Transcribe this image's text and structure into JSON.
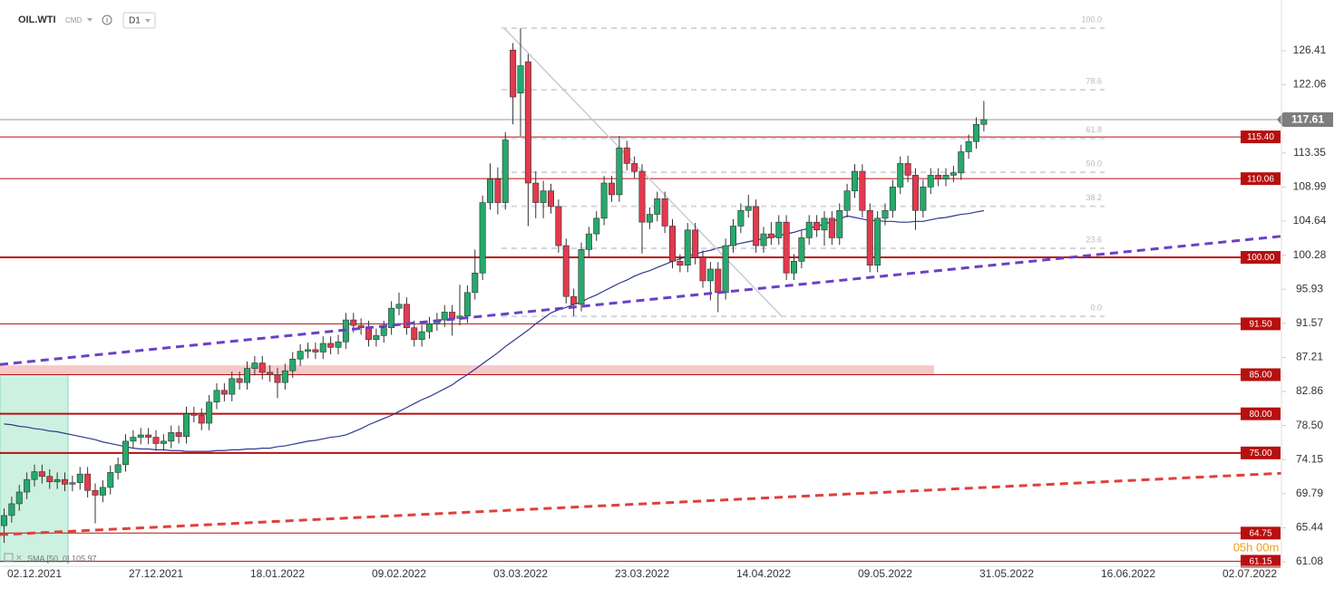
{
  "header": {
    "symbol": "OIL.WTI",
    "market": "CMD",
    "interval": "D1",
    "countdown": "05h 00m"
  },
  "chart_data": {
    "type": "candlestick",
    "ylim": [
      60.5,
      132.9
    ],
    "yticks": [
      126.41,
      122.06,
      113.35,
      108.99,
      104.64,
      100.28,
      95.93,
      91.57,
      87.21,
      82.86,
      {
        "value": 78.5,
        "label": "78.50"
      },
      74.15,
      69.79,
      65.44,
      61.08
    ],
    "categories": [
      null,
      null,
      null,
      null,
      "02.12.2021",
      null,
      null,
      null,
      null,
      null,
      null,
      null,
      null,
      null,
      null,
      null,
      null,
      null,
      null,
      null,
      "27.12.2021",
      null,
      null,
      null,
      null,
      null,
      null,
      null,
      null,
      null,
      null,
      null,
      null,
      null,
      null,
      null,
      "18.01.2022",
      null,
      null,
      null,
      null,
      null,
      null,
      null,
      null,
      null,
      null,
      null,
      null,
      null,
      null,
      null,
      "09.02.2022",
      null,
      null,
      null,
      null,
      null,
      null,
      null,
      null,
      null,
      null,
      null,
      null,
      null,
      null,
      null,
      "03.03.2022",
      null,
      null,
      null,
      null,
      null,
      null,
      null,
      null,
      null,
      null,
      null,
      null,
      null,
      null,
      null,
      "23.03.2022",
      null,
      null,
      null,
      null,
      null,
      null,
      null,
      null,
      null,
      null,
      null,
      null,
      null,
      null,
      null,
      "14.04.2022",
      null,
      null,
      null,
      null,
      null,
      null,
      null,
      null,
      null,
      null,
      null,
      null,
      null,
      null,
      null,
      "09.05.2022",
      null,
      null,
      null,
      null,
      null,
      null,
      null,
      null,
      null,
      null,
      null,
      null,
      null,
      null,
      null,
      "31.05.2022",
      null,
      null,
      null,
      null,
      null,
      null,
      null,
      null,
      null,
      null,
      null,
      null,
      null,
      null,
      null,
      "16.06.2022",
      null,
      null,
      null,
      null,
      null,
      null,
      null,
      null,
      null,
      null,
      null,
      null,
      null,
      null,
      null,
      "02.07.2022",
      null,
      null
    ],
    "up_color": "#26a96c",
    "down_color": "#e23a4e",
    "open": [
      65.7,
      67.0,
      68.5,
      70.0,
      71.6,
      72.6,
      72.0,
      71.3,
      71.6,
      71.0,
      71.2,
      72.3,
      70.2,
      69.6,
      70.6,
      72.5,
      73.5,
      76.5,
      77.0,
      77.3,
      77.0,
      76.2,
      76.5,
      77.6,
      77.1,
      80.0,
      79.8,
      78.8,
      81.5,
      83.0,
      82.5,
      84.5,
      84.0,
      85.8,
      86.5,
      85.3,
      85.0,
      84.0,
      85.5,
      87.0,
      88.0,
      88.2,
      87.9,
      89.0,
      88.5,
      89.2,
      92.0,
      91.3,
      91.0,
      89.5,
      90.0,
      91.0,
      93.5,
      94.0,
      91.0,
      89.5,
      90.5,
      91.5,
      92.0,
      93.0,
      92.2,
      92.5,
      95.5,
      98.0,
      107.0,
      110.0,
      107.0,
      126.5,
      121.0,
      125.0,
      109.5,
      107.0,
      108.5,
      106.5,
      101.5,
      95.0,
      94.0,
      101.0,
      103.0,
      105.0,
      109.5,
      108.0,
      114.0,
      112.0,
      111.0,
      104.5,
      105.5,
      107.5,
      104.0,
      99.5,
      99.0,
      103.5,
      100.0,
      97.0,
      98.5,
      95.5,
      101.5,
      104.0,
      106.0,
      106.5,
      101.5,
      103.0,
      102.5,
      104.5,
      98.0,
      99.5,
      102.5,
      104.5,
      103.5,
      105.0,
      102.5,
      106.0,
      108.5,
      111.0,
      106.0,
      99.0,
      105.0,
      106.0,
      109.0,
      112.0,
      110.5,
      106.0,
      109.0,
      110.5,
      110.0,
      110.5,
      110.8,
      113.5,
      114.8,
      117.0,
      null,
      null,
      null,
      null,
      null,
      null,
      null,
      null,
      null,
      null,
      null,
      null,
      null,
      null,
      null,
      null,
      null,
      null,
      null,
      null,
      null,
      null,
      null,
      null,
      null,
      null,
      null,
      null,
      null,
      null,
      null,
      null,
      null,
      null,
      null,
      null,
      null
    ],
    "high": [
      67.9,
      69.4,
      70.9,
      72.5,
      73.5,
      73.5,
      72.9,
      72.5,
      72.5,
      72.1,
      73.2,
      73.2,
      71.1,
      71.5,
      73.4,
      74.4,
      77.4,
      77.9,
      78.2,
      78.2,
      77.9,
      77.4,
      78.5,
      78.5,
      80.9,
      80.9,
      80.7,
      82.4,
      83.9,
      83.9,
      85.4,
      85.4,
      86.7,
      87.4,
      87.4,
      86.2,
      85.9,
      86.4,
      87.9,
      88.9,
      89.1,
      89.1,
      89.9,
      89.9,
      90.1,
      92.9,
      92.9,
      92.2,
      91.9,
      90.9,
      91.9,
      94.4,
      95.5,
      94.9,
      91.9,
      91.4,
      92.4,
      92.9,
      93.9,
      93.9,
      96.5,
      96.4,
      101.0,
      107.9,
      112.0,
      111.5,
      116.0,
      127.4,
      129.3,
      126.0,
      111.0,
      109.8,
      109.4,
      107.4,
      102.4,
      96.0,
      101.9,
      103.9,
      105.9,
      110.4,
      110.4,
      115.5,
      114.9,
      112.9,
      111.9,
      106.4,
      108.4,
      108.4,
      104.9,
      100.4,
      104.4,
      104.4,
      100.9,
      99.4,
      99.4,
      102.4,
      104.9,
      106.9,
      108.0,
      107.4,
      103.9,
      104.5,
      105.4,
      105.4,
      100.4,
      103.4,
      105.4,
      105.4,
      105.9,
      105.9,
      106.9,
      109.4,
      111.9,
      111.9,
      106.9,
      105.9,
      106.9,
      109.9,
      112.9,
      113.0,
      111.4,
      109.9,
      111.4,
      111.4,
      111.4,
      111.7,
      114.4,
      115.7,
      117.9,
      120.0,
      null,
      null,
      null,
      null,
      null,
      null,
      null,
      null,
      null,
      null,
      null,
      null,
      null,
      null,
      null,
      null,
      null,
      null,
      null,
      null,
      null,
      null,
      null,
      null,
      null,
      null,
      null,
      null,
      null,
      null,
      null,
      null,
      null,
      null,
      null,
      null,
      null
    ],
    "low": [
      63.5,
      66.1,
      67.6,
      69.1,
      70.7,
      71.1,
      70.4,
      70.4,
      70.1,
      70.1,
      70.3,
      69.3,
      66.0,
      68.7,
      69.7,
      71.6,
      72.6,
      75.6,
      76.1,
      76.1,
      75.3,
      75.3,
      75.6,
      76.2,
      76.2,
      78.9,
      77.9,
      77.9,
      80.6,
      81.6,
      81.6,
      83.1,
      83.1,
      84.9,
      84.4,
      84.1,
      82.0,
      83.1,
      84.6,
      86.1,
      87.1,
      87.0,
      87.0,
      87.6,
      87.6,
      88.3,
      90.4,
      90.1,
      88.6,
      88.6,
      89.1,
      90.1,
      92.6,
      90.1,
      88.6,
      88.6,
      89.6,
      90.6,
      91.1,
      90.0,
      91.3,
      91.6,
      94.6,
      97.1,
      106.1,
      105.5,
      106.1,
      117.0,
      115.5,
      104.0,
      105.0,
      105.0,
      105.6,
      100.6,
      94.1,
      92.5,
      93.1,
      100.1,
      102.1,
      104.1,
      107.1,
      107.1,
      111.1,
      110.1,
      100.5,
      103.6,
      104.6,
      103.1,
      98.6,
      98.1,
      98.1,
      99.1,
      96.1,
      94.5,
      93.0,
      94.6,
      100.6,
      103.1,
      105.1,
      100.6,
      100.6,
      101.6,
      101.6,
      97.1,
      97.1,
      98.6,
      101.6,
      102.6,
      101.5,
      101.6,
      101.6,
      105.1,
      107.6,
      105.1,
      98.1,
      98.1,
      104.1,
      105.1,
      108.1,
      109.6,
      103.5,
      105.1,
      108.1,
      109.1,
      109.1,
      109.6,
      109.9,
      112.6,
      113.9,
      116.1,
      null,
      null,
      null,
      null,
      null,
      null,
      null,
      null,
      null,
      null,
      null,
      null,
      null,
      null,
      null,
      null,
      null,
      null,
      null,
      null,
      null,
      null,
      null,
      null,
      null,
      null,
      null,
      null,
      null,
      null,
      null,
      null,
      null,
      null,
      null,
      null,
      null
    ],
    "close": [
      67.0,
      68.5,
      70.0,
      71.6,
      72.6,
      72.0,
      71.3,
      71.6,
      71.0,
      71.2,
      72.3,
      70.2,
      69.6,
      70.6,
      72.5,
      73.5,
      76.5,
      77.0,
      77.3,
      77.0,
      76.2,
      76.5,
      77.6,
      77.1,
      80.0,
      79.8,
      78.8,
      81.5,
      83.0,
      82.5,
      84.5,
      84.0,
      85.8,
      86.5,
      85.3,
      85.0,
      84.0,
      85.5,
      87.0,
      88.0,
      88.2,
      87.9,
      89.0,
      88.5,
      89.2,
      92.0,
      91.3,
      91.0,
      89.5,
      90.0,
      91.0,
      93.5,
      94.0,
      91.0,
      89.5,
      90.5,
      91.5,
      92.0,
      93.0,
      92.2,
      92.5,
      95.5,
      98.0,
      107.0,
      110.0,
      107.0,
      115.0,
      120.5,
      124.5,
      109.5,
      107.0,
      108.5,
      106.5,
      101.5,
      95.0,
      94.0,
      101.0,
      103.0,
      105.0,
      109.5,
      108.0,
      114.0,
      112.0,
      111.0,
      104.5,
      105.5,
      107.5,
      104.0,
      99.5,
      99.0,
      103.5,
      100.0,
      97.0,
      98.5,
      95.5,
      101.5,
      104.0,
      106.0,
      106.5,
      101.5,
      103.0,
      102.5,
      104.5,
      98.0,
      99.5,
      102.5,
      104.5,
      103.5,
      105.0,
      102.5,
      106.0,
      108.5,
      111.0,
      106.0,
      99.0,
      105.0,
      106.0,
      109.0,
      112.0,
      110.5,
      106.0,
      109.0,
      110.5,
      110.0,
      110.5,
      110.8,
      113.5,
      114.8,
      117.0,
      117.61,
      null,
      null,
      null,
      null,
      null,
      null,
      null,
      null,
      null,
      null,
      null,
      null,
      null,
      null,
      null,
      null,
      null,
      null,
      null,
      null,
      null,
      null,
      null,
      null,
      null,
      null,
      null,
      null,
      null,
      null,
      null,
      null,
      null,
      null,
      null,
      null,
      null
    ],
    "sma": {
      "label": "SMA [50, 0] 105.97",
      "color": "#2e3a8c",
      "values": [
        78.7,
        78.6,
        78.4,
        78.3,
        78.1,
        78.0,
        77.8,
        77.7,
        77.5,
        77.3,
        77.1,
        76.9,
        76.7,
        76.4,
        76.2,
        76.0,
        75.8,
        75.6,
        75.5,
        75.5,
        75.4,
        75.4,
        75.3,
        75.3,
        75.2,
        75.2,
        75.2,
        75.2,
        75.3,
        75.3,
        75.4,
        75.4,
        75.5,
        75.5,
        75.6,
        75.6,
        75.8,
        75.9,
        76.1,
        76.3,
        76.5,
        76.6,
        76.8,
        77.0,
        77.1,
        77.3,
        77.7,
        78.1,
        78.6,
        79.0,
        79.4,
        79.8,
        80.3,
        80.8,
        81.3,
        81.8,
        82.2,
        82.7,
        83.2,
        83.7,
        84.4,
        85.0,
        85.7,
        86.4,
        87.1,
        87.8,
        88.6,
        89.3,
        90.0,
        90.7,
        91.5,
        92.2,
        92.9,
        93.3,
        93.6,
        94.0,
        94.3,
        94.8,
        95.2,
        95.7,
        96.2,
        96.7,
        97.1,
        97.6,
        98.0,
        98.3,
        98.7,
        99.1,
        99.5,
        99.8,
        100.2,
        100.4,
        100.7,
        100.9,
        101.2,
        101.4,
        101.6,
        101.8,
        102.0,
        102.2,
        102.4,
        102.6,
        102.8,
        103.0,
        103.2,
        103.5,
        103.7,
        104.0,
        104.2,
        104.6,
        104.9,
        105.3,
        105.1,
        104.9,
        104.7,
        104.7,
        104.6,
        104.6,
        104.5,
        104.5,
        104.6,
        104.6,
        104.8,
        105.0,
        105.1,
        105.3,
        105.5,
        105.6,
        105.8,
        105.97,
        null,
        null,
        null,
        null,
        null,
        null,
        null,
        null,
        null,
        null,
        null,
        null,
        null,
        null,
        null,
        null,
        null,
        null,
        null,
        null,
        null,
        null,
        null,
        null,
        null,
        null,
        null,
        null,
        null,
        null,
        null,
        null,
        null,
        null,
        null,
        null,
        null
      ]
    },
    "last_price": 117.61,
    "levels": [
      {
        "value": 115.4,
        "label": "115.40"
      },
      110.06,
      {
        "value": 100,
        "label": "100.00",
        "bold": true
      },
      {
        "value": 91.5,
        "label": "91.50"
      },
      {
        "value": 85,
        "label": "85.00"
      },
      {
        "value": 80,
        "label": "80.00",
        "bold": true
      },
      {
        "value": 75,
        "label": "75.00",
        "bold": true
      },
      64.75,
      61.15
    ],
    "level_color": "#b80f0f",
    "zone": {
      "from": 85,
      "to": 86.2,
      "color": "#f6c9c9"
    },
    "fibonacci": {
      "high": 129.3,
      "low": 92.46,
      "levels": [
        {
          "value": 100,
          "label": "100.0"
        },
        78.6,
        61.8,
        {
          "value": 50,
          "label": "50.0"
        },
        38.2,
        23.6,
        {
          "value": 0,
          "label": "0.0"
        }
      ]
    },
    "trendlines": [
      {
        "from": 86.3,
        "to": 102.7,
        "color": "#6a40c8",
        "dash": true
      },
      {
        "from": 64.55,
        "to": 72.4,
        "color": "#e0403a",
        "dash": true
      },
      {
        "from": 129.3,
        "to": 92.46,
        "color": "#c8ccd2",
        "dash": false
      }
    ]
  }
}
